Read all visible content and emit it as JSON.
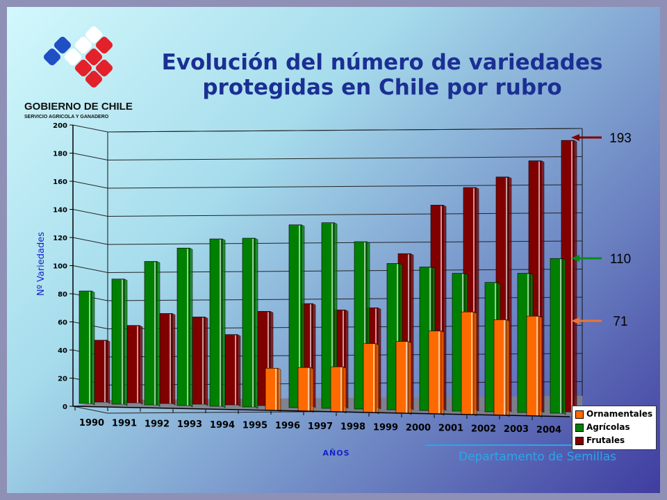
{
  "slide": {
    "title_line1": "Evolución del número de variedades",
    "title_line2": "protegidas en Chile por rubro",
    "logo_line1": "GOBIERNO DE CHILE",
    "logo_line2": "SERVICIO AGRICOLA Y GANADERO",
    "department": "Departamento de Semillas"
  },
  "colors": {
    "ornamentales": "#ff6a00",
    "agricolas": "#008000",
    "frutales": "#800000"
  },
  "chart_data": {
    "type": "bar",
    "title": "Evolución del número de variedades protegidas en Chile por rubro",
    "xlabel": "AÑOS",
    "ylabel": "Nº Variedades",
    "ylim": [
      0,
      200
    ],
    "yticks": [
      "0",
      "20",
      "40",
      "60",
      "80",
      "100",
      "120",
      "140",
      "160",
      "180",
      "200"
    ],
    "categories": [
      "1990",
      "1991",
      "1992",
      "1993",
      "1994",
      "1995",
      "1996",
      "1997",
      "1998",
      "1999",
      "2000",
      "2001",
      "2002",
      "2003",
      "2004"
    ],
    "series": [
      {
        "name": "Ornamentales",
        "values": [
          0,
          0,
          0,
          0,
          0,
          0,
          30,
          31,
          32,
          49,
          51,
          59,
          73,
          68,
          71
        ]
      },
      {
        "name": "Agrícolas",
        "values": [
          80,
          89,
          102,
          112,
          119,
          120,
          130,
          132,
          119,
          104,
          102,
          98,
          92,
          99,
          110
        ]
      },
      {
        "name": "Frutales",
        "values": [
          44,
          55,
          64,
          62,
          50,
          67,
          73,
          69,
          71,
          110,
          145,
          158,
          166,
          178,
          193
        ]
      }
    ],
    "annotations": [
      {
        "text": "193",
        "series": "Frutales"
      },
      {
        "text": "110",
        "series": "Agrícolas"
      },
      {
        "text": "71",
        "series": "Ornamentales"
      }
    ],
    "legend": "bottom-right",
    "grid": true
  }
}
